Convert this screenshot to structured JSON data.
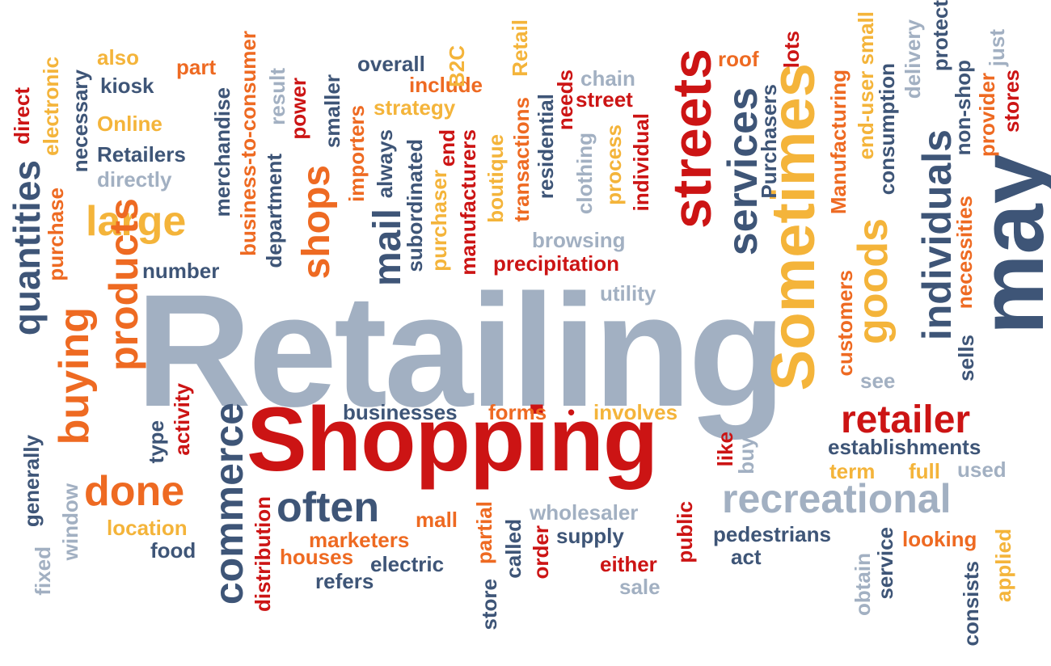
{
  "colors": {
    "red": "#cc1414",
    "orange": "#ee6a22",
    "yellow": "#f4b43a",
    "navy": "#3e5577",
    "gray": "#a2b0c2",
    "background": "#ffffff"
  },
  "words": {
    "retailing": "Retailing",
    "shopping": "Shopping",
    "may": "may",
    "sometimes": "Sometimes",
    "streets": "streets",
    "services": "services",
    "individuals": "individuals",
    "goods": "goods",
    "recreational": "recreational",
    "retailer": "retailer",
    "commerce": "commerce",
    "products": "products",
    "buying": "buying",
    "quantities": "quantities",
    "done": "done",
    "large": "large",
    "often": "often",
    "shops": "shops",
    "mail": "mail",
    "also": "also",
    "part": "part",
    "kiosk": "kiosk",
    "online": "Online",
    "retailers": "Retailers",
    "directly": "directly",
    "overall": "overall",
    "include": "include",
    "strategy": "strategy",
    "chain": "chain",
    "street": "street",
    "roof": "roof",
    "browsing": "browsing",
    "precipitation": "precipitation",
    "utility": "utility",
    "number": "number",
    "businesses": "businesses",
    "forms": "forms",
    "dot": "•",
    "involves": "involves",
    "establishments": "establishments",
    "term": "term",
    "full": "full",
    "used": "used",
    "see": "see",
    "wholesaler": "wholesaler",
    "mall": "mall",
    "location": "location",
    "food": "food",
    "marketers": "marketers",
    "houses": "houses",
    "electric": "electric",
    "refers": "refers",
    "supply": "supply",
    "either": "either",
    "sale": "sale",
    "pedestrians": "pedestrians",
    "act": "act",
    "looking": "looking",
    "direct": "direct",
    "electronic": "electronic",
    "necessary": "necessary",
    "purchase": "purchase",
    "merchandise": "merchandise",
    "business_to_consumer": "business-to-consumer",
    "result": "result",
    "department": "department",
    "power": "power",
    "smaller": "smaller",
    "importers": "importers",
    "always": "always",
    "subordinated": "subordinated",
    "b2c": "B2C",
    "end": "end",
    "purchaser": "purchaser",
    "manufacturers": "manufacturers",
    "boutique": "boutique",
    "retail": "Retail",
    "transactions": "transactions",
    "residential": "residential",
    "needs": "needs",
    "clothing": "clothing",
    "process": "process",
    "individual": "individual",
    "purchasers": "Purchasers",
    "lots": "lots",
    "manufacturing": "Manufacturing",
    "end_user_small": "end-user small",
    "consumption": "consumption",
    "delivery": "delivery",
    "protect": "protect",
    "non_shop": "non-shop",
    "provider": "provider",
    "just": "just",
    "stores": "stores",
    "necessities": "necessities",
    "sells": "sells",
    "customers": "customers",
    "activity": "activity",
    "type": "type",
    "generally": "generally",
    "window": "window",
    "fixed": "fixed",
    "distribution": "distribution",
    "store": "store",
    "partial": "partial",
    "called": "called",
    "order": "order",
    "public": "public",
    "like": "like",
    "buys": "buys",
    "obtain": "obtain",
    "service": "service",
    "consists": "consists",
    "applied": "applied"
  }
}
